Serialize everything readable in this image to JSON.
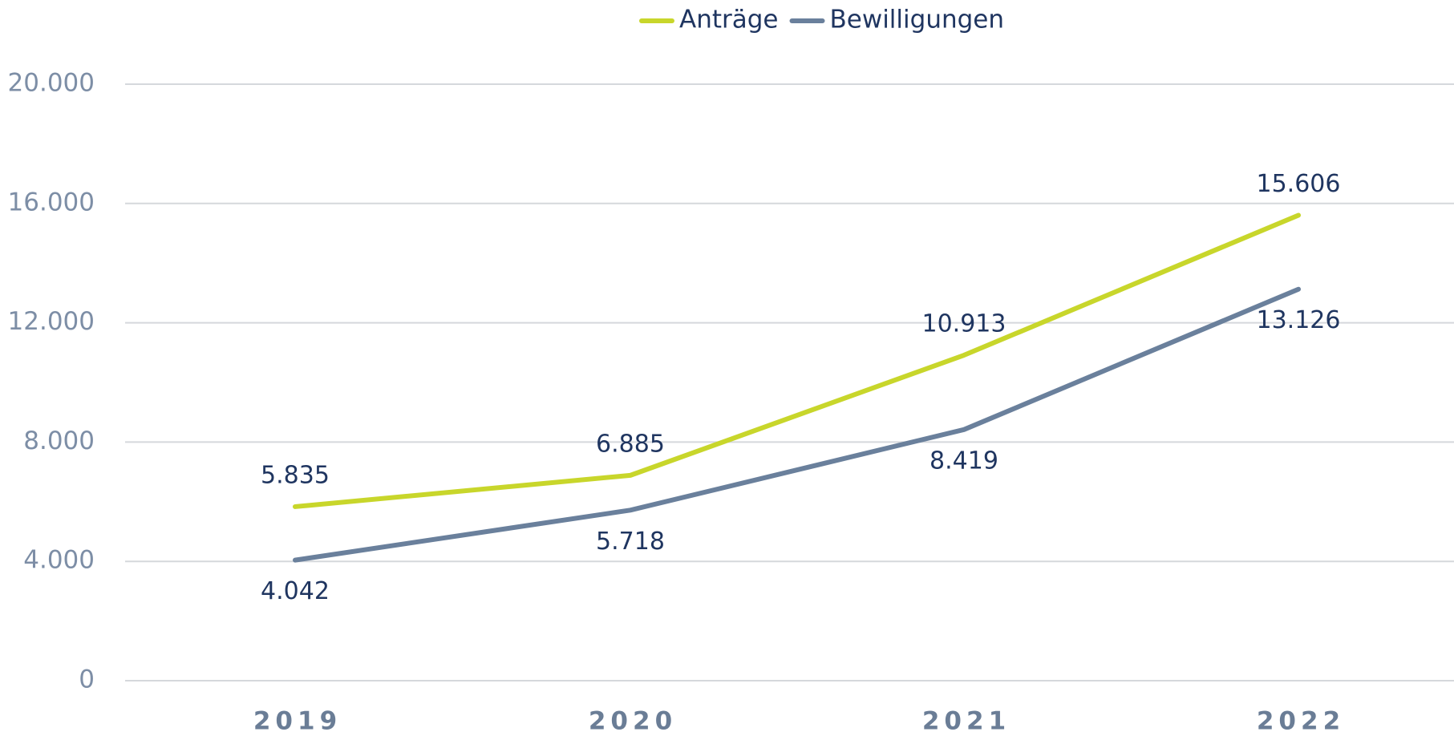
{
  "chart_data": {
    "type": "line",
    "categories": [
      "2019",
      "2020",
      "2021",
      "2022"
    ],
    "series": [
      {
        "name": "Anträge",
        "color": "#c8d62b",
        "values": [
          5835,
          6885,
          10913,
          15606
        ],
        "value_labels": [
          "5.835",
          "6.885",
          "10.913",
          "15.606"
        ]
      },
      {
        "name": "Bewilligungen",
        "color": "#6a809c",
        "values": [
          4042,
          5718,
          8419,
          13126
        ],
        "value_labels": [
          "4.042",
          "5.718",
          "8.419",
          "13.126"
        ]
      }
    ],
    "ylim": [
      0,
      20000
    ],
    "yticks": [
      {
        "value": 0,
        "label": "0"
      },
      {
        "value": 4000,
        "label": "4.000"
      },
      {
        "value": 8000,
        "label": "8.000"
      },
      {
        "value": 12000,
        "label": "12.000"
      },
      {
        "value": 16000,
        "label": "16.000"
      },
      {
        "value": 20000,
        "label": "20.000"
      }
    ],
    "grid": true,
    "legend": "top"
  }
}
